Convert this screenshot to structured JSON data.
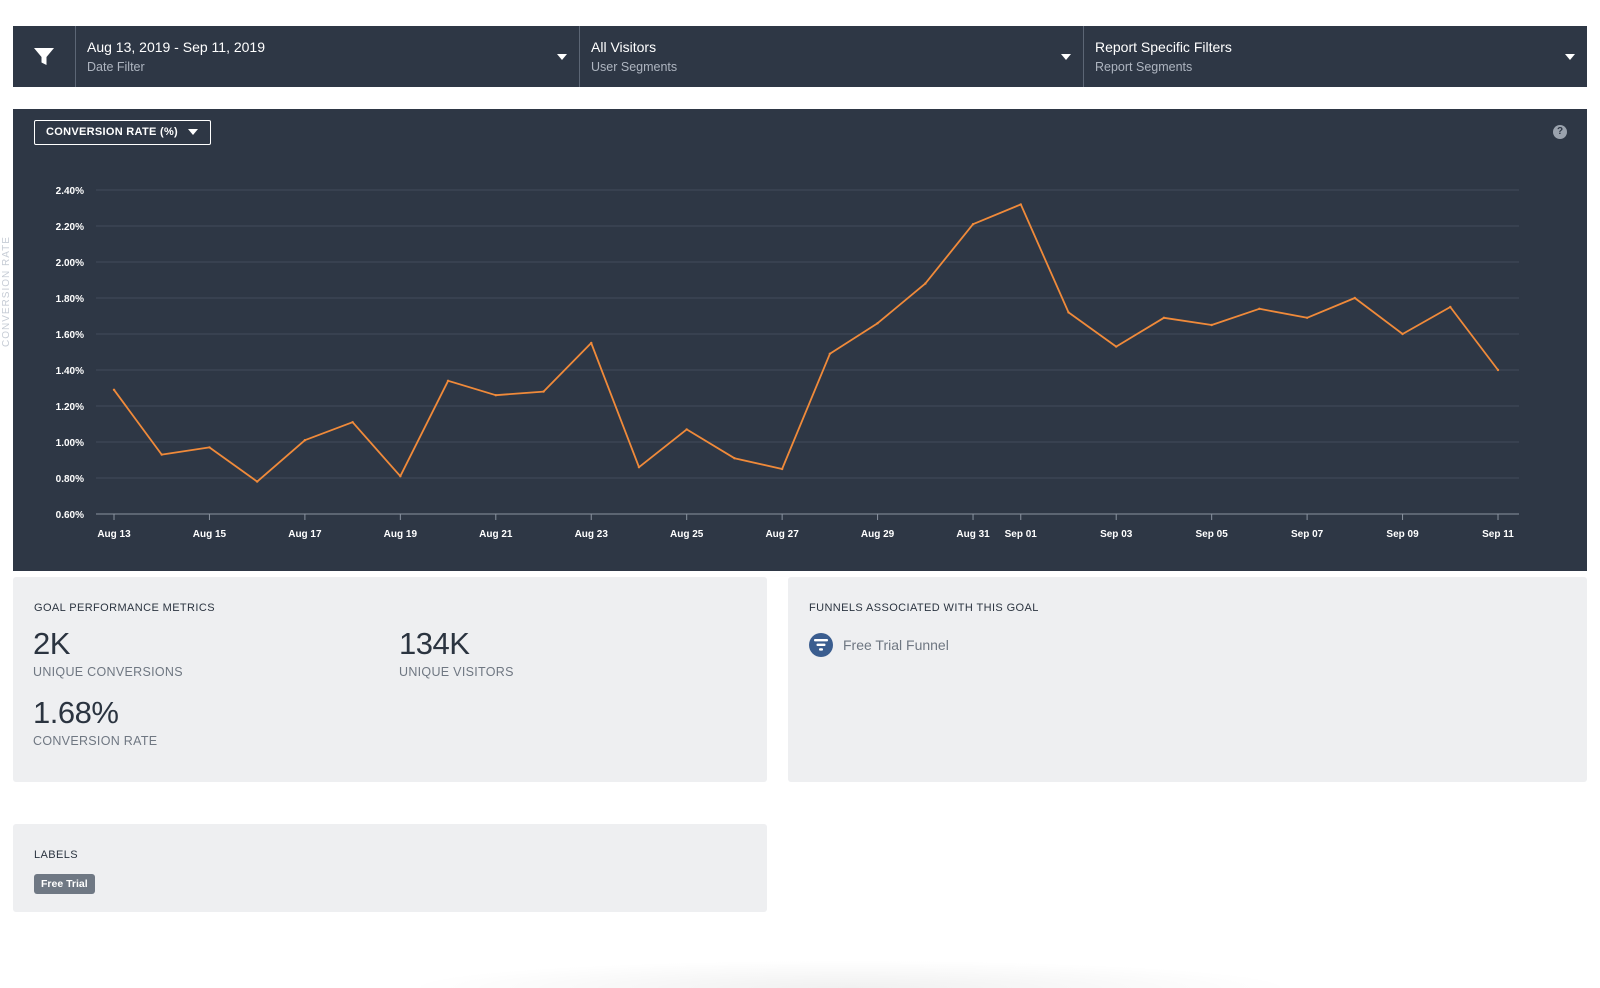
{
  "filters": {
    "date": {
      "value": "Aug 13, 2019 - Sep 11, 2019",
      "label": "Date Filter"
    },
    "segments": {
      "value": "All Visitors",
      "label": "User Segments"
    },
    "report": {
      "value": "Report Specific Filters",
      "label": "Report Segments"
    }
  },
  "chart_panel": {
    "metric_select": "CONVERSION RATE (%)",
    "help": "?",
    "y_title": "CONVERSION RATE"
  },
  "chart_data": {
    "type": "line",
    "title": "",
    "xlabel": "",
    "ylabel": "CONVERSION RATE",
    "ylim": [
      0.6,
      2.4
    ],
    "yticks": [
      0.6,
      0.8,
      1.0,
      1.2,
      1.4,
      1.6,
      1.8,
      2.0,
      2.2,
      2.4
    ],
    "ytick_labels": [
      "0.60%",
      "0.80%",
      "1.00%",
      "1.20%",
      "1.40%",
      "1.60%",
      "1.80%",
      "2.00%",
      "2.20%",
      "2.40%"
    ],
    "xtick_indices": [
      0,
      2,
      4,
      6,
      8,
      10,
      12,
      14,
      16,
      18,
      19,
      21,
      23,
      25,
      27,
      29
    ],
    "xtick_labels": [
      "Aug 13",
      "Aug 15",
      "Aug 17",
      "Aug 19",
      "Aug 21",
      "Aug 23",
      "Aug 25",
      "Aug 27",
      "Aug 29",
      "Aug 31",
      "Sep 01",
      "Sep 03",
      "Sep 05",
      "Sep 07",
      "Sep 09",
      "Sep 11"
    ],
    "series": [
      {
        "name": "Conversion Rate",
        "color": "#f08a3a",
        "values": [
          1.29,
          0.93,
          0.97,
          0.78,
          1.01,
          1.11,
          0.81,
          1.34,
          1.26,
          1.28,
          1.55,
          0.86,
          1.07,
          0.91,
          0.85,
          1.49,
          1.66,
          1.88,
          2.21,
          2.32,
          1.72,
          1.53,
          1.69,
          1.65,
          1.74,
          1.69,
          1.8,
          1.6,
          1.75,
          1.4
        ]
      }
    ],
    "grid": true
  },
  "goal_metrics": {
    "title": "GOAL PERFORMANCE METRICS",
    "unique_conversions": {
      "value": "2K",
      "label": "UNIQUE CONVERSIONS"
    },
    "unique_visitors": {
      "value": "134K",
      "label": "UNIQUE VISITORS"
    },
    "conversion_rate": {
      "value": "1.68%",
      "label": "CONVERSION RATE"
    }
  },
  "funnels": {
    "title": "FUNNELS ASSOCIATED WITH THIS GOAL",
    "items": [
      {
        "name": "Free Trial Funnel"
      }
    ]
  },
  "labels": {
    "title": "LABELS",
    "items": [
      {
        "name": "Free Trial"
      }
    ]
  },
  "colors": {
    "panel_bg": "#2e3745",
    "line": "#f08a3a",
    "card_bg": "#eeeff1"
  }
}
